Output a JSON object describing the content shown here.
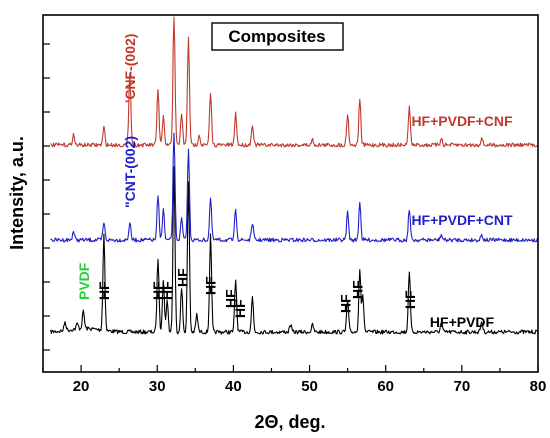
{
  "chart_data": {
    "type": "line",
    "title": "Composites",
    "xlabel": "2Θ, deg.",
    "ylabel": "Intensity, a.u.",
    "xlim": [
      15,
      80
    ],
    "xticks": [
      20,
      30,
      40,
      50,
      60,
      70,
      80
    ],
    "xtick_labels": [
      "20",
      "30",
      "40",
      "50",
      "60",
      "70",
      "80"
    ],
    "grid": false,
    "y_ticks_unlabeled": true,
    "series": [
      {
        "name": "HF+PVDF",
        "color": "#000000",
        "baseline": 0,
        "peaks": [
          {
            "x": 17.9,
            "h": 0.05
          },
          {
            "x": 19.5,
            "h": 0.03
          },
          {
            "x": 20.3,
            "h": 0.1
          },
          {
            "x": 23.0,
            "h": 0.55
          },
          {
            "x": 30.1,
            "h": 0.42
          },
          {
            "x": 30.8,
            "h": 0.3
          },
          {
            "x": 31.3,
            "h": 0.18
          },
          {
            "x": 32.2,
            "h": 0.95
          },
          {
            "x": 33.2,
            "h": 0.25
          },
          {
            "x": 34.1,
            "h": 0.85
          },
          {
            "x": 35.2,
            "h": 0.1
          },
          {
            "x": 37.0,
            "h": 0.55
          },
          {
            "x": 40.3,
            "h": 0.3
          },
          {
            "x": 42.5,
            "h": 0.2
          },
          {
            "x": 47.5,
            "h": 0.04
          },
          {
            "x": 50.4,
            "h": 0.04
          },
          {
            "x": 55.0,
            "h": 0.18
          },
          {
            "x": 56.6,
            "h": 0.36
          },
          {
            "x": 57.0,
            "h": 0.2
          },
          {
            "x": 63.1,
            "h": 0.35
          },
          {
            "x": 67.3,
            "h": 0.05
          },
          {
            "x": 72.6,
            "h": 0.06
          }
        ]
      },
      {
        "name": "HF+PVDF+CNT",
        "color": "#1f1fc8",
        "baseline": 1,
        "peaks": [
          {
            "x": 19.0,
            "h": 0.05
          },
          {
            "x": 23.0,
            "h": 0.1
          },
          {
            "x": 26.4,
            "h": 0.1
          },
          {
            "x": 30.1,
            "h": 0.25
          },
          {
            "x": 30.8,
            "h": 0.18
          },
          {
            "x": 32.2,
            "h": 0.62
          },
          {
            "x": 33.2,
            "h": 0.12
          },
          {
            "x": 34.1,
            "h": 0.52
          },
          {
            "x": 37.0,
            "h": 0.24
          },
          {
            "x": 40.3,
            "h": 0.18
          },
          {
            "x": 42.5,
            "h": 0.1
          },
          {
            "x": 55.0,
            "h": 0.16
          },
          {
            "x": 56.6,
            "h": 0.22
          },
          {
            "x": 63.1,
            "h": 0.18
          },
          {
            "x": 67.3,
            "h": 0.03
          },
          {
            "x": 72.6,
            "h": 0.03
          }
        ]
      },
      {
        "name": "HF+PVDF+CNF",
        "color": "#c0392b",
        "baseline": 2,
        "peaks": [
          {
            "x": 19.0,
            "h": 0.06
          },
          {
            "x": 23.0,
            "h": 0.1
          },
          {
            "x": 26.4,
            "h": 0.42
          },
          {
            "x": 30.1,
            "h": 0.32
          },
          {
            "x": 30.8,
            "h": 0.16
          },
          {
            "x": 32.2,
            "h": 0.78
          },
          {
            "x": 33.2,
            "h": 0.18
          },
          {
            "x": 34.1,
            "h": 0.62
          },
          {
            "x": 35.5,
            "h": 0.06
          },
          {
            "x": 37.0,
            "h": 0.3
          },
          {
            "x": 40.3,
            "h": 0.18
          },
          {
            "x": 42.5,
            "h": 0.12
          },
          {
            "x": 50.4,
            "h": 0.03
          },
          {
            "x": 55.0,
            "h": 0.18
          },
          {
            "x": 56.6,
            "h": 0.26
          },
          {
            "x": 63.1,
            "h": 0.22
          },
          {
            "x": 67.3,
            "h": 0.04
          },
          {
            "x": 72.6,
            "h": 0.04
          }
        ]
      }
    ],
    "annotations": [
      {
        "text": "PVDF",
        "x": 20.4,
        "series": 0,
        "color": "#2ecc40"
      },
      {
        "text": "HF",
        "x": 23.0,
        "series": 0,
        "color": "#000000"
      },
      {
        "text": "HF",
        "x": 30.1,
        "series": 0,
        "color": "#000000"
      },
      {
        "text": "HF",
        "x": 31.3,
        "series": 0,
        "color": "#000000"
      },
      {
        "text": "HF",
        "x": 33.3,
        "series": 0,
        "color": "#000000"
      },
      {
        "text": "HF",
        "x": 37.0,
        "series": 0,
        "color": "#000000"
      },
      {
        "text": "HF",
        "x": 39.6,
        "series": 0,
        "color": "#000000"
      },
      {
        "text": "HF",
        "x": 40.9,
        "series": 0,
        "color": "#000000"
      },
      {
        "text": "HF",
        "x": 54.7,
        "series": 0,
        "color": "#000000"
      },
      {
        "text": "HF",
        "x": 56.3,
        "series": 0,
        "color": "#000000"
      },
      {
        "text": "HF",
        "x": 63.2,
        "series": 0,
        "color": "#000000"
      },
      {
        "text": "\"CNT-(002)",
        "x": 26.4,
        "series": 1,
        "color": "#1f1fc8"
      },
      {
        "text": "'CNF-(002)",
        "x": 26.4,
        "series": 2,
        "color": "#c0392b"
      }
    ]
  }
}
